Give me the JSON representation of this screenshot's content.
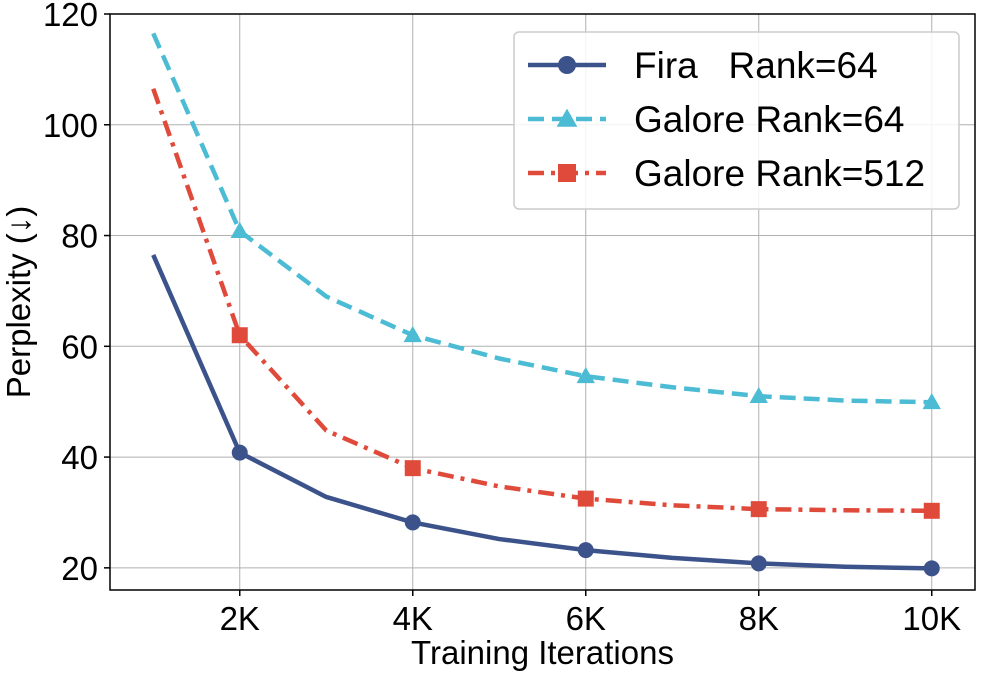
{
  "chart_data": {
    "type": "line",
    "title": "",
    "xlabel": "Training Iterations",
    "ylabel": "Perplexity (↓)",
    "xlim": [
      500,
      10500
    ],
    "ylim": [
      16,
      120
    ],
    "x": [
      1000,
      2000,
      3000,
      4000,
      5000,
      6000,
      7000,
      8000,
      9000,
      10000
    ],
    "x_ticks": [
      2000,
      4000,
      6000,
      8000,
      10000
    ],
    "x_tick_labels": [
      "2K",
      "4K",
      "6K",
      "8K",
      "10K"
    ],
    "y_ticks": [
      20,
      40,
      60,
      80,
      100,
      120
    ],
    "y_tick_labels": [
      "20",
      "40",
      "60",
      "80",
      "100",
      "120"
    ],
    "grid": true,
    "legend_position": "top-right",
    "series": [
      {
        "name": "Fira   Rank=64",
        "color": "#3b528b",
        "marker": "circle",
        "dash": "solid",
        "values": [
          76.5,
          40.8,
          32.8,
          28.2,
          25.2,
          23.2,
          21.8,
          20.8,
          20.2,
          19.9
        ]
      },
      {
        "name": "Galore Rank=64",
        "color": "#4bbcd4",
        "marker": "triangle",
        "dash": "dashed",
        "values": [
          116.5,
          80.8,
          69,
          62,
          57.8,
          54.6,
          52.6,
          51,
          50.2,
          49.9
        ]
      },
      {
        "name": "Galore Rank=512",
        "color": "#e04a3b",
        "marker": "square",
        "dash": "dashdot",
        "values": [
          106.5,
          62,
          44.8,
          38,
          34.7,
          32.5,
          31.3,
          30.6,
          30.4,
          30.3
        ]
      }
    ]
  }
}
